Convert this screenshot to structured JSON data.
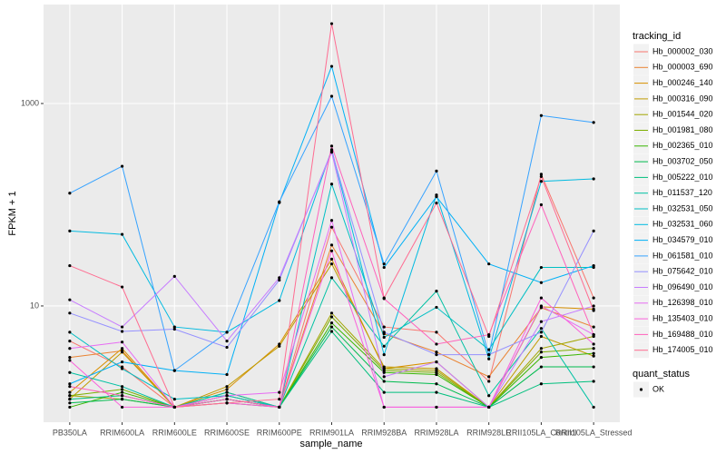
{
  "chart_data": {
    "type": "line",
    "x_label": "sample_name",
    "y_label": "FPKM + 1",
    "categories": [
      "PB350LA",
      "RRIM600LA",
      "RRIM600LE",
      "RRIM600SE",
      "RRIM600PE",
      "RRIM901LA",
      "RRIM928BA",
      "RRIM928LA",
      "RRIM928LE",
      "RRII105LA_Control",
      "RRII105LA_Stressed"
    ],
    "y_scale": "log",
    "ylim": [
      0.71,
      9500
    ],
    "yticks": [
      10,
      1000
    ],
    "grid": true,
    "legend_title": "tracking_id",
    "legend_position": "right",
    "point_legend_title": "quant_status",
    "point_legend_label": "OK",
    "point_color": "#000000",
    "series": [
      {
        "name": "Hb_000002_030",
        "color": "#F8766D",
        "values": [
          4.5,
          2.5,
          1,
          1.3,
          1,
          60,
          6.2,
          5.5,
          1.8,
          200,
          12
        ]
      },
      {
        "name": "Hb_000003_690",
        "color": "#EA8331",
        "values": [
          3.1,
          3.6,
          1,
          1.2,
          1,
          40,
          5.3,
          3.5,
          2.0,
          9.6,
          6.2
        ]
      },
      {
        "name": "Hb_000246_140",
        "color": "#D89000",
        "values": [
          1.4,
          3.8,
          1,
          1.5,
          4.2,
          29,
          2.4,
          2.8,
          1,
          9.8,
          9.3
        ]
      },
      {
        "name": "Hb_000316_090",
        "color": "#C09B00",
        "values": [
          1.2,
          3.5,
          1,
          1.6,
          4.0,
          26,
          2.5,
          2.4,
          1,
          5.0,
          3.2
        ]
      },
      {
        "name": "Hb_001544_020",
        "color": "#A3A500",
        "values": [
          1.3,
          1.2,
          1,
          1.3,
          1,
          8.5,
          2.4,
          2.3,
          1,
          3.8,
          5.0
        ]
      },
      {
        "name": "Hb_001981_080",
        "color": "#7CAE00",
        "values": [
          1.3,
          1.5,
          1,
          1.4,
          1,
          7.8,
          2.3,
          2.2,
          1,
          3.5,
          3.8
        ]
      },
      {
        "name": "Hb_002365_010",
        "color": "#39B600",
        "values": [
          1.0,
          1.4,
          1,
          1.1,
          1,
          6.8,
          2.2,
          2.1,
          1,
          3.1,
          3.4
        ]
      },
      {
        "name": "Hb_003702_050",
        "color": "#00BB4E",
        "values": [
          1.1,
          1.2,
          1,
          1.2,
          1,
          6.2,
          1.8,
          1.7,
          1,
          2.5,
          2.5
        ]
      },
      {
        "name": "Hb_005222_010",
        "color": "#00BF7D",
        "values": [
          1.2,
          1.3,
          1,
          1.2,
          1,
          5.6,
          1.4,
          1.4,
          1,
          1.7,
          1.8
        ]
      },
      {
        "name": "Hb_011537_120",
        "color": "#00C1A3",
        "values": [
          2.2,
          1.6,
          1,
          1.4,
          1,
          19,
          4.0,
          14,
          1.3,
          6.0,
          1.0
        ]
      },
      {
        "name": "Hb_032531_050",
        "color": "#00BFC4",
        "values": [
          5.5,
          2.4,
          1.2,
          1.3,
          1,
          160,
          4.9,
          9.7,
          3.7,
          24,
          24
        ]
      },
      {
        "name": "Hb_032531_060",
        "color": "#00BAE0",
        "values": [
          55,
          51,
          6.2,
          5.5,
          11.3,
          350,
          3.3,
          125,
          3.0,
          170,
          180
        ]
      },
      {
        "name": "Hb_034579_010",
        "color": "#00B0F6",
        "values": [
          1.7,
          2.8,
          2.3,
          2.1,
          105,
          2330,
          24,
          120,
          26,
          17,
          25
        ]
      },
      {
        "name": "Hb_061581_010",
        "color": "#35A2FF",
        "values": [
          130,
          240,
          2.3,
          5.5,
          107,
          1180,
          26,
          215,
          3.3,
          760,
          650
        ]
      },
      {
        "name": "Hb_075642_010",
        "color": "#9590FF",
        "values": [
          8.5,
          5.6,
          5.9,
          3.9,
          18,
          340,
          5.5,
          3.3,
          3.3,
          5.5,
          55
        ]
      },
      {
        "name": "Hb_096490_010",
        "color": "#C77CFF",
        "values": [
          11.5,
          6.2,
          19.6,
          4.5,
          19,
          330,
          2.0,
          2.8,
          1,
          7.0,
          10
        ]
      },
      {
        "name": "Hb_126398_010",
        "color": "#E76BF3",
        "values": [
          3.8,
          4.4,
          1,
          1.3,
          1.4,
          70,
          1,
          1,
          1,
          10,
          5.2
        ]
      },
      {
        "name": "Hb_135403_010",
        "color": "#FA62DB",
        "values": [
          2.9,
          1,
          1,
          1.1,
          1,
          35,
          1,
          1,
          1,
          12,
          4.2
        ]
      },
      {
        "name": "Hb_169488_010",
        "color": "#FF62BC",
        "values": [
          1.6,
          1.3,
          1,
          1.2,
          1,
          380,
          11.8,
          4.2,
          5.2,
          100,
          5.2
        ]
      },
      {
        "name": "Hb_174005_010",
        "color": "#FF6C91",
        "values": [
          25,
          15.4,
          1,
          1.1,
          1.2,
          6150,
          12,
          104,
          5.0,
          190,
          9
        ]
      }
    ]
  }
}
